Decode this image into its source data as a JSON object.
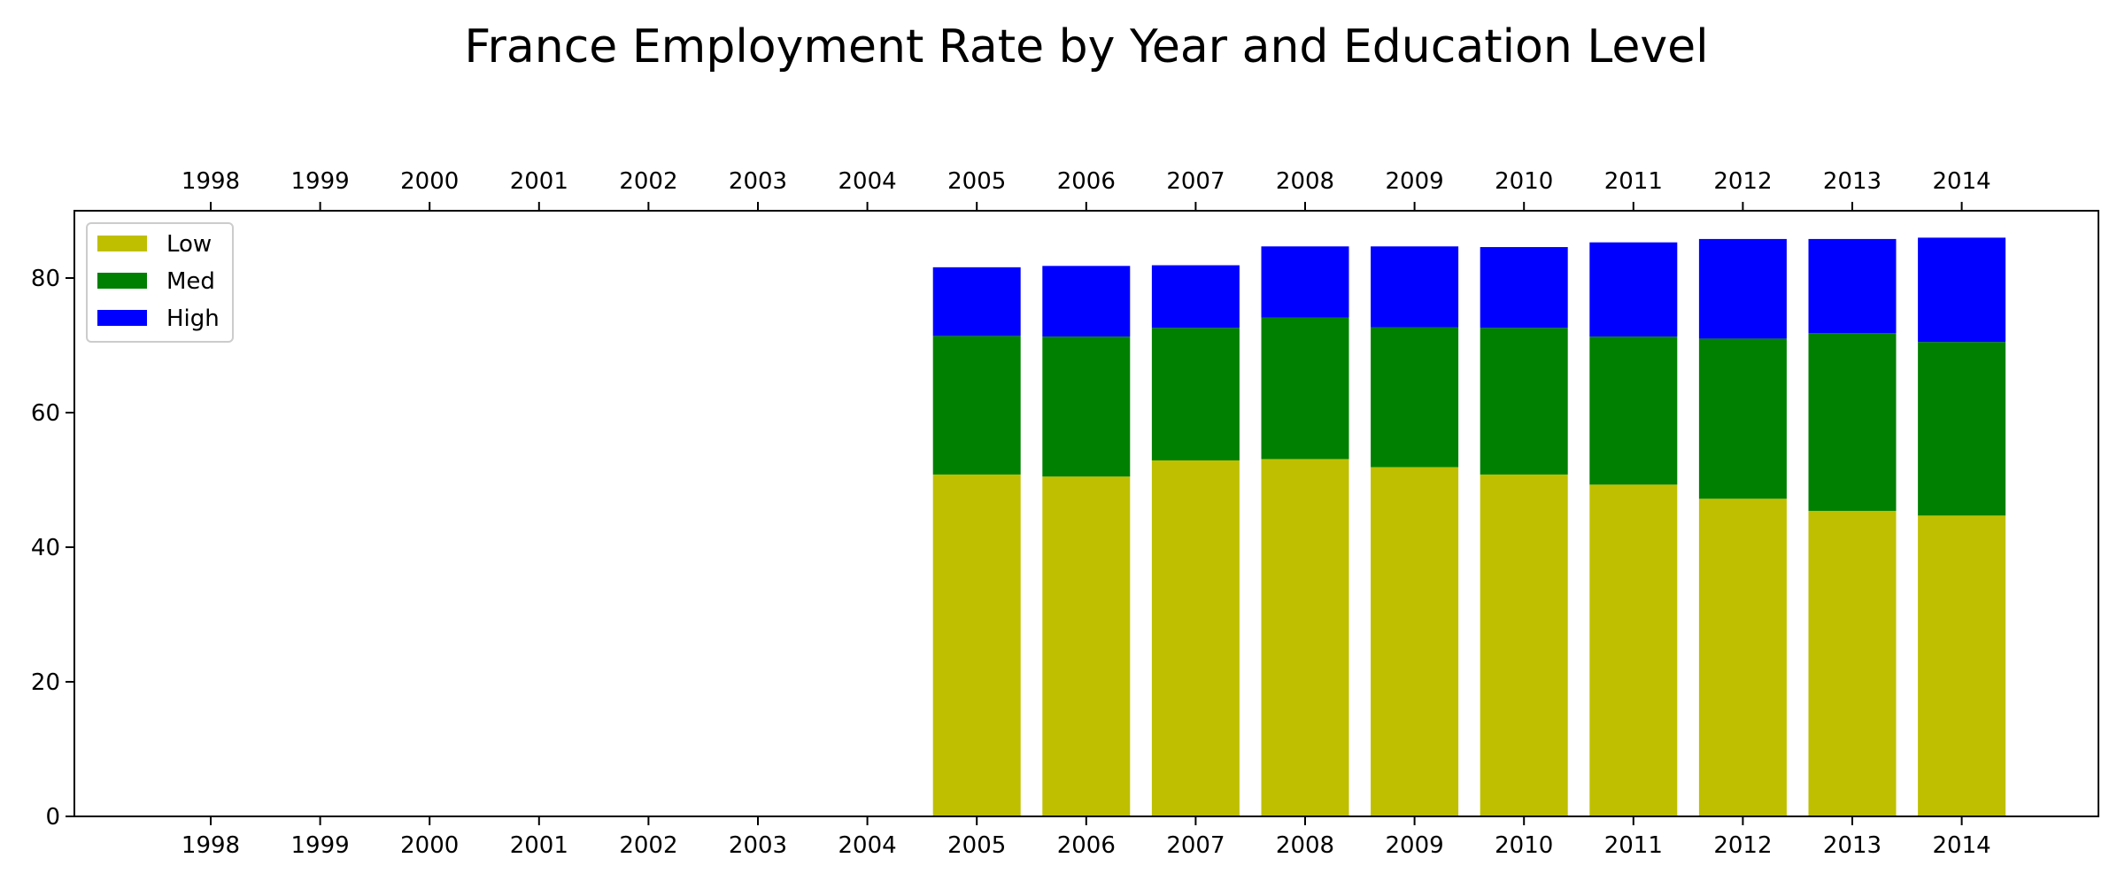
{
  "chart_data": {
    "type": "bar",
    "stacked": true,
    "title": "France Employment Rate by Year and Education Level",
    "xlabel": "",
    "ylabel": "",
    "categories": [
      "1998",
      "1999",
      "2000",
      "2001",
      "2002",
      "2003",
      "2004",
      "2005",
      "2006",
      "2007",
      "2008",
      "2009",
      "2010",
      "2011",
      "2012",
      "2013",
      "2014"
    ],
    "series": [
      {
        "name": "Low",
        "color": "#bfbf00",
        "values": [
          null,
          null,
          null,
          null,
          null,
          null,
          null,
          50.8,
          50.5,
          52.9,
          53.1,
          51.9,
          50.8,
          49.3,
          47.2,
          45.4,
          44.7
        ]
      },
      {
        "name": "Med",
        "color": "#008000",
        "values": [
          null,
          null,
          null,
          null,
          null,
          null,
          null,
          20.6,
          20.8,
          19.7,
          21.0,
          20.8,
          21.8,
          22.0,
          23.8,
          26.4,
          25.8
        ]
      },
      {
        "name": "High",
        "color": "#0000ff",
        "values": [
          null,
          null,
          null,
          null,
          null,
          null,
          null,
          10.2,
          10.5,
          9.3,
          10.6,
          12.0,
          12.0,
          14.0,
          14.8,
          14.0,
          15.5
        ]
      }
    ],
    "ylim": [
      0,
      90
    ],
    "yticks": [
      0,
      20,
      40,
      60,
      80
    ],
    "grid": false,
    "legend": "top-left",
    "x_ticks_top": true
  }
}
